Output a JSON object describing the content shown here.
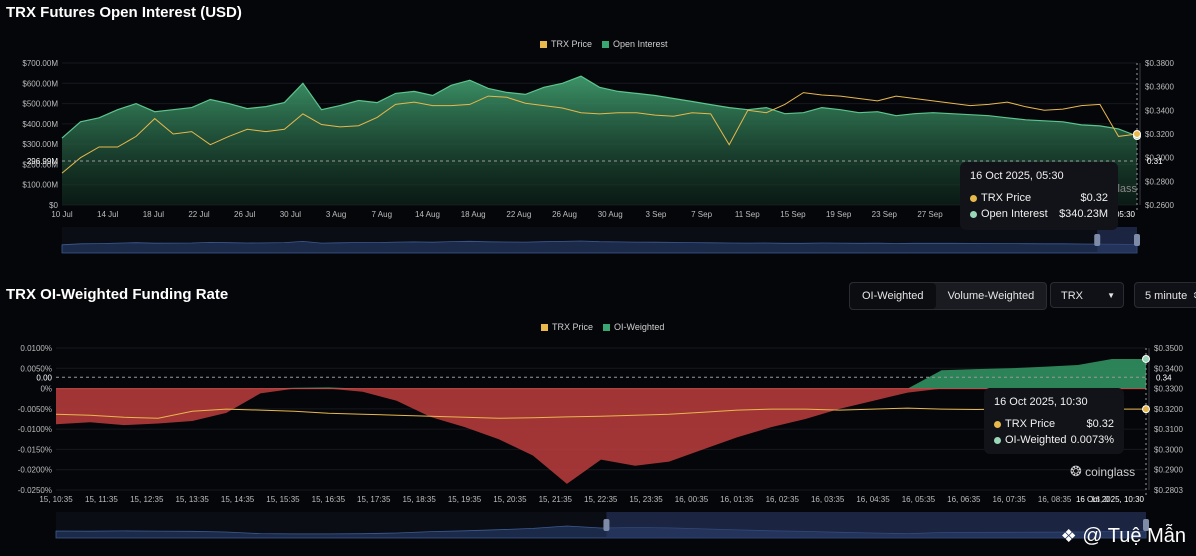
{
  "panel1": {
    "title": "TRX Futures Open Interest (USD)",
    "legend": [
      {
        "label": "TRX Price",
        "color": "#e8b84b"
      },
      {
        "label": "Open Interest",
        "color": "#3aa772"
      }
    ],
    "tooltip": {
      "date": "16 Oct 2025, 05:30",
      "rows": [
        {
          "label": "TRX Price",
          "value": "$0.32",
          "color": "#e8b84b"
        },
        {
          "label": "Open Interest",
          "value": "$340.23M",
          "color": "#9ad6b8"
        }
      ]
    },
    "crosshair_left_label": "296.99M",
    "crosshair_right_label": "0.31",
    "watermark": "coinglass",
    "x_cursor_label": "16 Oct 2025, 05:30"
  },
  "panel2": {
    "title": "TRX OI-Weighted Funding Rate",
    "legend": [
      {
        "label": "TRX Price",
        "color": "#e8b84b"
      },
      {
        "label": "OI-Weighted",
        "color": "#3aa772"
      }
    ],
    "toggle": {
      "options": [
        "OI-Weighted",
        "Volume-Weighted"
      ],
      "active": "OI-Weighted"
    },
    "coin_select": "TRX",
    "interval_select": "5 minute",
    "tooltip": {
      "date": "16 Oct 2025, 10:30",
      "rows": [
        {
          "label": "TRX Price",
          "value": "$0.32",
          "color": "#e8b84b"
        },
        {
          "label": "OI-Weighted",
          "value": "0.0073%",
          "color": "#9ad6b8"
        }
      ]
    },
    "crosshair_left_label": "0.00",
    "crosshair_right_label": "0.34",
    "watermark": "coinglass",
    "x_cursor_label": "16 Oct 2025, 10:30"
  },
  "credit": "@ Tuệ Mẫn",
  "chart_data": [
    {
      "type": "area",
      "title": "TRX Futures Open Interest (USD)",
      "x_tick_labels": [
        "10 Jul",
        "14 Jul",
        "18 Jul",
        "22 Jul",
        "26 Jul",
        "30 Jul",
        "3 Aug",
        "7 Aug",
        "14 Aug",
        "18 Aug",
        "22 Aug",
        "26 Aug",
        "30 Aug",
        "3 Sep",
        "7 Sep",
        "11 Sep",
        "15 Sep",
        "19 Sep",
        "23 Sep",
        "27 Sep"
      ],
      "y_left_ticks": [
        "$0",
        "$100.00M",
        "$200.00M",
        "$300.00M",
        "$400.00M",
        "$500.00M",
        "$600.00M",
        "$700.00M"
      ],
      "y_right_ticks": [
        "$0.2600",
        "$0.2800",
        "$0.3000",
        "$0.3200",
        "$0.3400",
        "$0.3600",
        "$0.3800"
      ],
      "ylim_left": [
        0,
        700
      ],
      "ylim_right": [
        0.26,
        0.38
      ],
      "series": [
        {
          "name": "Open Interest",
          "unit": "USD M",
          "axis": "left",
          "values": [
            330,
            410,
            430,
            470,
            500,
            460,
            470,
            480,
            520,
            500,
            475,
            485,
            505,
            600,
            470,
            490,
            515,
            505,
            550,
            560,
            540,
            590,
            615,
            575,
            555,
            545,
            580,
            600,
            635,
            580,
            560,
            550,
            540,
            525,
            510,
            495,
            480,
            470,
            480,
            450,
            455,
            480,
            470,
            455,
            460,
            440,
            450,
            455,
            450,
            445,
            440,
            430,
            420,
            415,
            410,
            395,
            390,
            375,
            340
          ]
        },
        {
          "name": "TRX Price",
          "unit": "USD",
          "axis": "right",
          "values": [
            0.287,
            0.3,
            0.309,
            0.309,
            0.318,
            0.333,
            0.32,
            0.322,
            0.311,
            0.318,
            0.324,
            0.322,
            0.324,
            0.337,
            0.328,
            0.326,
            0.327,
            0.334,
            0.345,
            0.347,
            0.344,
            0.344,
            0.345,
            0.352,
            0.351,
            0.346,
            0.344,
            0.342,
            0.338,
            0.337,
            0.338,
            0.338,
            0.336,
            0.335,
            0.338,
            0.337,
            0.311,
            0.34,
            0.338,
            0.345,
            0.355,
            0.353,
            0.352,
            0.35,
            0.348,
            0.352,
            0.35,
            0.348,
            0.346,
            0.344,
            0.345,
            0.347,
            0.343,
            0.34,
            0.341,
            0.344,
            0.345,
            0.318,
            0.32
          ]
        }
      ]
    },
    {
      "type": "area",
      "title": "TRX OI-Weighted Funding Rate",
      "x_tick_labels": [
        "15, 10:35",
        "15, 11:35",
        "15, 12:35",
        "15, 13:35",
        "15, 14:35",
        "15, 15:35",
        "15, 16:35",
        "15, 17:35",
        "15, 18:35",
        "15, 19:35",
        "15, 20:35",
        "15, 21:35",
        "15, 22:35",
        "15, 23:35",
        "16, 00:35",
        "16, 01:35",
        "16, 02:35",
        "16, 03:35",
        "16, 04:35",
        "16, 05:35",
        "16, 06:35",
        "16, 07:35",
        "16, 08:35",
        "16, 0"
      ],
      "y_left_ticks": [
        "-0.0250%",
        "-0.0200%",
        "-0.0150%",
        "-0.0100%",
        "-0.0050%",
        "0%",
        "0.0050%",
        "0.0100%"
      ],
      "y_right_ticks": [
        "$0.2803",
        "$0.2900",
        "$0.3000",
        "$0.3100",
        "$0.3200",
        "$0.3300",
        "$0.3400",
        "$0.3500"
      ],
      "ylim_left": [
        -0.025,
        0.01
      ],
      "ylim_right": [
        0.2803,
        0.35
      ],
      "series": [
        {
          "name": "OI-Weighted",
          "unit": "%",
          "axis": "left",
          "values": [
            -0.0088,
            -0.0083,
            -0.009,
            -0.0086,
            -0.008,
            -0.006,
            -0.0012,
            0.0002,
            0.0003,
            -0.0008,
            -0.003,
            -0.007,
            -0.0095,
            -0.0125,
            -0.0165,
            -0.0235,
            -0.0175,
            -0.019,
            -0.018,
            -0.015,
            -0.012,
            -0.0095,
            -0.0075,
            -0.005,
            -0.003,
            -0.001,
            0.0045,
            0.0048,
            0.005,
            0.0054,
            0.0058,
            0.0073,
            0.0073
          ]
        },
        {
          "name": "TRX Price",
          "unit": "USD",
          "axis": "right",
          "values": [
            0.3175,
            0.317,
            0.316,
            0.3155,
            0.319,
            0.32,
            0.3195,
            0.319,
            0.318,
            0.3175,
            0.317,
            0.3165,
            0.316,
            0.3155,
            0.3158,
            0.3162,
            0.3165,
            0.317,
            0.3175,
            0.3185,
            0.3195,
            0.32,
            0.32,
            0.3195,
            0.32,
            0.3205,
            0.32,
            0.3198,
            0.32,
            0.32,
            0.32,
            0.32,
            0.32
          ]
        }
      ]
    }
  ]
}
